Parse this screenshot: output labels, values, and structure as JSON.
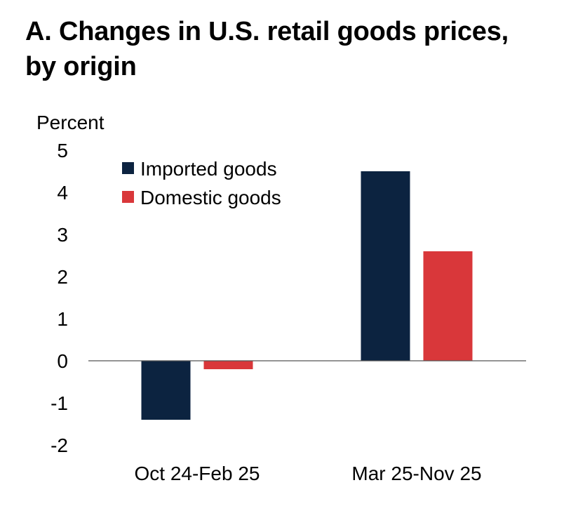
{
  "chart_data": {
    "type": "bar",
    "title": "A. Changes in U.S. retail goods prices, by origin",
    "title_lines": [
      "A. Changes in U.S. retail goods prices,",
      "by origin"
    ],
    "ylabel": "Percent",
    "xlabel": "",
    "ylim": [
      -2,
      5
    ],
    "yticks": [
      "5",
      "4",
      "3",
      "2",
      "1",
      "0",
      "-1",
      "-2"
    ],
    "ytick_values": [
      5,
      4,
      3,
      2,
      1,
      0,
      -1,
      -2
    ],
    "categories": [
      "Oct 24-Feb 25",
      "Mar 25-Nov 25"
    ],
    "series": [
      {
        "name": "Imported goods",
        "values": [
          -1.4,
          4.5
        ],
        "color": "#0c2340"
      },
      {
        "name": "Domestic goods",
        "values": [
          -0.2,
          2.6
        ],
        "color": "#d9373a"
      }
    ],
    "legend_position": "top-left",
    "grid": false
  }
}
